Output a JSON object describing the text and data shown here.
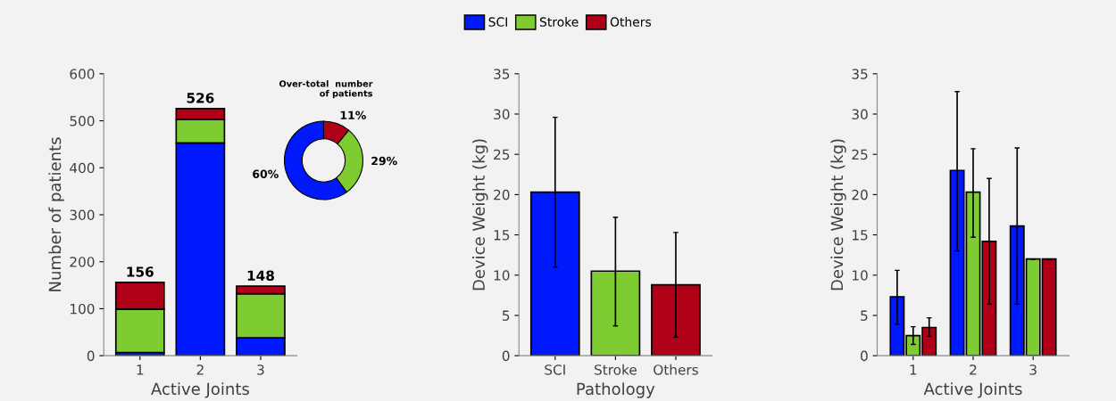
{
  "chart_data": [
    {
      "type": "bar",
      "stacked": true,
      "categories": [
        "1",
        "2",
        "3"
      ],
      "xlabel": "Active Joints",
      "ylabel": "Number of patients",
      "ylim": [
        0,
        600
      ],
      "yticks": [
        0,
        100,
        200,
        300,
        400,
        500,
        600
      ],
      "totals": [
        "156",
        "526",
        "148"
      ],
      "series": [
        {
          "color": "#0019fc",
          "values": [
            7,
            453,
            38
          ]
        },
        {
          "color": "#7fcc32",
          "values": [
            92,
            50,
            94
          ]
        },
        {
          "color": "#b00018",
          "values": [
            57,
            23,
            16
          ]
        }
      ]
    },
    {
      "type": "donut",
      "title": "Over-total  number\nof patients",
      "categories": [
        "SCI",
        "Stroke",
        "Others"
      ],
      "values": [
        60,
        29,
        11
      ],
      "colors": [
        "#0019fc",
        "#7fcc32",
        "#b00018"
      ],
      "value_labels": [
        "60%",
        "29%",
        "11%"
      ],
      "legend": "top"
    },
    {
      "type": "bar",
      "categories": [
        "SCI",
        "Stroke",
        "Others"
      ],
      "xlabel": "Pathology",
      "ylabel": "Device Weight (kg)",
      "ylim": [
        0,
        35
      ],
      "yticks": [
        0,
        5,
        10,
        15,
        20,
        25,
        30,
        35
      ],
      "values": [
        20.3,
        10.5,
        8.8
      ],
      "colors": [
        "#0019fc",
        "#7fcc32",
        "#b00018"
      ],
      "errors": [
        [
          11,
          29.6
        ],
        [
          3.7,
          17.2
        ],
        [
          2.3,
          15.3
        ]
      ]
    },
    {
      "type": "bar",
      "categories": [
        "1",
        "2",
        "3"
      ],
      "xlabel": "Active Joints",
      "ylabel": "Device Weight (kg)",
      "ylim": [
        0,
        35
      ],
      "yticks": [
        0,
        5,
        10,
        15,
        20,
        25,
        30,
        35
      ],
      "series": [
        {
          "color": "#0019fc",
          "values": [
            7.3,
            23.0,
            16.1
          ],
          "errors": [
            [
              3.9,
              10.6
            ],
            [
              13.0,
              32.8
            ],
            [
              6.4,
              25.8
            ]
          ]
        },
        {
          "color": "#7fcc32",
          "values": [
            2.5,
            20.3,
            12.0
          ],
          "errors": [
            [
              1.4,
              3.6
            ],
            [
              14.7,
              25.7
            ],
            null
          ]
        },
        {
          "color": "#b00018",
          "values": [
            3.5,
            14.2,
            12.0
          ],
          "errors": [
            [
              2.4,
              4.7
            ],
            [
              6.4,
              22.0
            ],
            null
          ]
        }
      ]
    }
  ]
}
